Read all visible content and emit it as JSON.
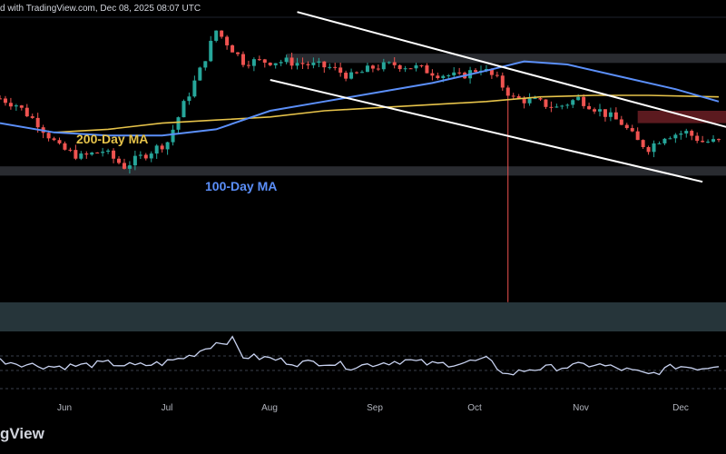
{
  "header": {
    "text": "d with TradingView.com, Dec 08, 2025 08:07 UTC"
  },
  "branding": {
    "text": "gView"
  },
  "colors": {
    "background": "#000000",
    "up": "#26a69a",
    "down": "#ef5350",
    "ma100": "#5b8ff9",
    "ma200": "#e6c34a",
    "trendline": "#ffffff",
    "resistance_zone": "#6b1f24",
    "zone": "#4a4f57",
    "bottom_zone": "#2a3b40",
    "rsi": "#c8d2f0",
    "wick_spike": "#ef5350"
  },
  "chart_data": {
    "type": "candlestick",
    "title": "",
    "x_ticks": [
      "Jun",
      "Jul",
      "Aug",
      "Sep",
      "Oct",
      "Nov",
      "Dec"
    ],
    "annotations": [
      {
        "text": "200-Day MA",
        "series": "ma200"
      },
      {
        "text": "100-Day MA",
        "series": "ma100"
      }
    ],
    "price_path": [
      [
        0,
        0.74
      ],
      [
        3,
        0.72
      ],
      [
        7,
        0.66
      ],
      [
        11,
        0.58
      ],
      [
        15,
        0.55
      ],
      [
        19,
        0.57
      ],
      [
        23,
        0.52
      ],
      [
        27,
        0.56
      ],
      [
        31,
        0.6
      ],
      [
        34,
        0.72
      ],
      [
        37,
        0.83
      ],
      [
        40,
        0.96
      ],
      [
        42,
        0.92
      ],
      [
        45,
        0.86
      ],
      [
        49,
        0.86
      ],
      [
        53,
        0.86
      ],
      [
        57,
        0.85
      ],
      [
        61,
        0.84
      ],
      [
        65,
        0.81
      ],
      [
        69,
        0.84
      ],
      [
        73,
        0.85
      ],
      [
        77,
        0.84
      ],
      [
        81,
        0.82
      ],
      [
        85,
        0.81
      ],
      [
        89,
        0.84
      ],
      [
        92,
        0.8
      ],
      [
        95,
        0.74
      ],
      [
        99,
        0.73
      ],
      [
        103,
        0.71
      ],
      [
        107,
        0.74
      ],
      [
        111,
        0.7
      ],
      [
        115,
        0.66
      ],
      [
        118,
        0.6
      ],
      [
        120,
        0.58
      ],
      [
        123,
        0.62
      ],
      [
        127,
        0.63
      ],
      [
        130,
        0.6
      ],
      [
        133,
        0.6
      ]
    ],
    "wick_spike": {
      "index": 94,
      "low": 0.08
    },
    "ma100": [
      [
        0,
        0.66
      ],
      [
        10,
        0.63
      ],
      [
        20,
        0.62
      ],
      [
        30,
        0.62
      ],
      [
        40,
        0.64
      ],
      [
        50,
        0.7
      ],
      [
        60,
        0.73
      ],
      [
        70,
        0.76
      ],
      [
        80,
        0.79
      ],
      [
        90,
        0.83
      ],
      [
        97,
        0.86
      ],
      [
        105,
        0.85
      ],
      [
        115,
        0.81
      ],
      [
        125,
        0.77
      ],
      [
        133,
        0.73
      ]
    ],
    "ma200": [
      [
        10,
        0.63
      ],
      [
        20,
        0.64
      ],
      [
        30,
        0.66
      ],
      [
        40,
        0.67
      ],
      [
        50,
        0.68
      ],
      [
        60,
        0.7
      ],
      [
        70,
        0.71
      ],
      [
        80,
        0.72
      ],
      [
        90,
        0.73
      ],
      [
        100,
        0.745
      ],
      [
        110,
        0.75
      ],
      [
        120,
        0.75
      ],
      [
        133,
        0.745
      ]
    ],
    "trendlines": [
      {
        "from": [
          55,
          1.02
        ],
        "to": [
          136,
          0.64
        ]
      },
      {
        "from": [
          50,
          0.8
        ],
        "to": [
          130,
          0.47
        ]
      }
    ],
    "zones": [
      {
        "kind": "resistance",
        "x_from": 118,
        "x_to": 136,
        "y_from": 0.66,
        "y_to": 0.7
      },
      {
        "kind": "support",
        "x_from": 53,
        "x_to": 136,
        "y_from": 0.855,
        "y_to": 0.885
      },
      {
        "kind": "support",
        "x_from": 0,
        "x_to": 136,
        "y_from": 0.49,
        "y_to": 0.52
      }
    ],
    "rsi": [
      [
        0,
        0.55
      ],
      [
        5,
        0.48
      ],
      [
        10,
        0.44
      ],
      [
        15,
        0.46
      ],
      [
        20,
        0.5
      ],
      [
        25,
        0.45
      ],
      [
        30,
        0.5
      ],
      [
        35,
        0.62
      ],
      [
        40,
        0.85
      ],
      [
        43,
        0.9
      ],
      [
        45,
        0.62
      ],
      [
        50,
        0.58
      ],
      [
        55,
        0.5
      ],
      [
        60,
        0.52
      ],
      [
        65,
        0.44
      ],
      [
        70,
        0.5
      ],
      [
        75,
        0.55
      ],
      [
        80,
        0.48
      ],
      [
        85,
        0.5
      ],
      [
        90,
        0.56
      ],
      [
        94,
        0.3
      ],
      [
        98,
        0.4
      ],
      [
        105,
        0.44
      ],
      [
        110,
        0.48
      ],
      [
        115,
        0.4
      ],
      [
        120,
        0.3
      ],
      [
        125,
        0.45
      ],
      [
        130,
        0.42
      ],
      [
        133,
        0.48
      ]
    ]
  }
}
